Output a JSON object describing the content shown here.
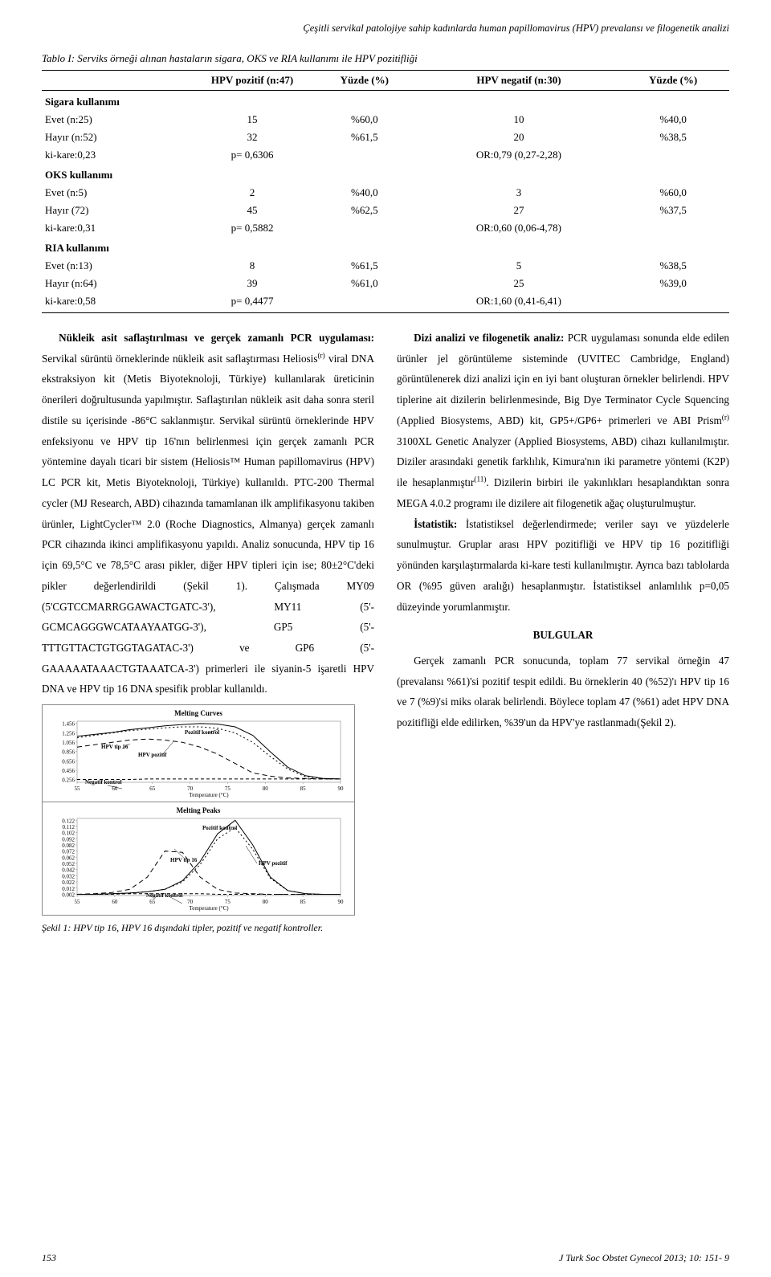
{
  "header_line": "Çeşitli servikal patolojiye sahip kadınlarda human papillomavirus (HPV) prevalansı ve filogenetik analizi",
  "table": {
    "caption": "Tablo I: Serviks örneği alınan hastaların sigara, OKS ve RIA kullanımı ile HPV pozitifliği",
    "columns": [
      "",
      "HPV pozitif (n:47)",
      "Yüzde (%)",
      "HPV negatif (n:30)",
      "Yüzde (%)"
    ],
    "sections": [
      {
        "head": "Sigara kullanımı",
        "rows": [
          [
            "Evet (n:25)",
            "15",
            "%60,0",
            "10",
            "%40,0"
          ],
          [
            "Hayır (n:52)",
            "32",
            "%61,5",
            "20",
            "%38,5"
          ],
          [
            "ki-kare:0,23",
            "p= 0,6306",
            "",
            "OR:0,79 (0,27-2,28)",
            ""
          ]
        ]
      },
      {
        "head": "OKS kullanımı",
        "rows": [
          [
            "Evet (n:5)",
            "2",
            "%40,0",
            "3",
            "%60,0"
          ],
          [
            "Hayır (72)",
            "45",
            "%62,5",
            "27",
            "%37,5"
          ],
          [
            "ki-kare:0,31",
            "p= 0,5882",
            "",
            "OR:0,60 (0,06-4,78)",
            ""
          ]
        ]
      },
      {
        "head": "RIA kullanımı",
        "rows": [
          [
            "Evet (n:13)",
            "8",
            "%61,5",
            "5",
            "%38,5"
          ],
          [
            "Hayır (n:64)",
            "39",
            "%61,0",
            "25",
            "%39,0"
          ],
          [
            "ki-kare:0,58",
            "p= 0,4477",
            "",
            "OR:1,60 (0,41-6,41)",
            ""
          ]
        ]
      }
    ]
  },
  "body": {
    "p1_prefix_bold": "Nükleik asit saflaştırılması ve gerçek zamanlı PCR uygulaması:",
    "p1_rest": " Servikal sürüntü örneklerinde nükleik asit saflaştırması Heliosis",
    "p1_sup": "(r)",
    "p1_rest2": " viral DNA ekstraksiyon kit (Metis Biyoteknoloji, Türkiye) kullanılarak üreticinin önerileri doğrultusunda yapılmıştır. Saflaştırılan nükleik asit daha sonra steril distile su içerisinde -86°C saklanmıştır. Servikal sürüntü örneklerinde HPV enfeksiyonu ve HPV tip 16'nın belirlenmesi için gerçek zamanlı PCR yöntemine dayalı ticari bir sistem (Heliosis™ Human papillomavirus (HPV) LC PCR kit, Metis Biyoteknoloji, Türkiye) kullanıldı. PTC-200 Thermal cycler (MJ Research, ABD) cihazında tamamlanan ilk amplifikasyonu takiben ürünler, LightCycler™ 2.0 (Roche Diagnostics, Almanya) gerçek zamanlı PCR cihazında ikinci amplifikasyonu yapıldı. Analiz sonucunda, HPV tip 16 için 69,5°C ve 78,5°C arası pikler, diğer HPV tipleri için ise; 80±2°C'deki pikler değerlendirildi (Şekil 1). Çalışmada MY09 (5'CGTCCMARRGGAWACTGATC-3'), MY11 (5'-GCMCAGGGWCATAAYAATGG-3'), GP5 (5'-TTTGTTACTGTGGTAGATAC-3') ve GP6 (5'-GAAAAATAAACTGTAAATCA-3') primerleri ile siyanin-5 işaretli HPV DNA ve HPV tip 16 DNA spesifik problar kullanıldı.",
    "p2_prefix_bold": "Dizi analizi ve filogenetik analiz:",
    "p2_rest": " PCR uygulaması sonunda elde edilen ürünler jel görüntüleme sisteminde (UVITEC Cambridge, England) görüntülenerek dizi analizi için en iyi bant oluşturan örnekler belirlendi. HPV tiplerine ait dizilerin belirlenmesinde, Big Dye Terminator Cycle Squencing (Applied Biosystems, ABD) kit, GP5+/GP6+ primerleri ve ABI Prism",
    "p2_sup": "(r)",
    "p2_rest2": " 3100XL Genetic Analyzer (Applied Biosystems, ABD) cihazı kullanılmıştır. Diziler arasındaki genetik farklılık, Kimura'nın iki parametre yöntemi (K2P) ile hesaplanmıştır",
    "p2_sup2": "(11)",
    "p2_rest3": ". Dizilerin birbiri ile yakınlıkları hesaplandıktan sonra MEGA 4.0.2 programı ile dizilere ait filogenetik ağaç oluşturulmuştur.",
    "p3_prefix_bold": "İstatistik:",
    "p3_rest": " İstatistiksel değerlendirmede; veriler sayı ve yüzdelerle sunulmuştur. Gruplar arası HPV pozitifliği ve HPV tip 16 pozitifliği yönünden karşılaştırmalarda ki-kare testi kullanılmıştır. Ayrıca bazı tablolarda OR (%95 güven aralığı) hesaplanmıştır. İstatistiksel anlamlılık p=0,05 düzeyinde yorumlanmıştır.",
    "sec_head": "BULGULAR",
    "p4": "Gerçek zamanlı PCR sonucunda, toplam 77 servikal örneğin 47 (prevalansı %61)'si pozitif tespit edildi. Bu örneklerin 40 (%52)'ı HPV tip 16 ve 7 (%9)'si miks olarak belirlendi. Böylece toplam 47 (%61) adet HPV DNA pozitifliği elde edilirken, %39'un da HPV'ye rastlanmadı(Şekil 2)."
  },
  "figure": {
    "panel1": {
      "title": "Melting Curves",
      "y_ticks": [
        "1.456",
        "1.256",
        "1.056",
        "0.856",
        "0.656",
        "0.456",
        "0.256"
      ],
      "x_ticks": [
        "55",
        "60",
        "65",
        "70",
        "75",
        "80",
        "85",
        "90"
      ],
      "x_label": "Temperature (°C)",
      "labels": {
        "neg": "Negatif kontrol",
        "hpv16": "HPV tip 16",
        "hpvpos": "HPV pozitif",
        "posk": "Pozitif kontrol"
      },
      "curves": {
        "neg": [
          0.26,
          0.26,
          0.26,
          0.26,
          0.27,
          0.27,
          0.27,
          0.27,
          0.27,
          0.27,
          0.27,
          0.27,
          0.27,
          0.27,
          0.27,
          0.27
        ],
        "hpv16": [
          0.95,
          1.0,
          1.05,
          1.1,
          1.12,
          1.1,
          1.05,
          0.95,
          0.8,
          0.6,
          0.4,
          0.33,
          0.29,
          0.28,
          0.27,
          0.27
        ],
        "hpvpos": [
          1.15,
          1.2,
          1.25,
          1.3,
          1.33,
          1.36,
          1.38,
          1.38,
          1.35,
          1.25,
          1.05,
          0.75,
          0.48,
          0.32,
          0.28,
          0.27
        ],
        "posk": [
          1.18,
          1.22,
          1.26,
          1.32,
          1.36,
          1.4,
          1.43,
          1.45,
          1.44,
          1.38,
          1.2,
          0.85,
          0.52,
          0.34,
          0.28,
          0.27
        ]
      },
      "ylim": [
        0.2,
        1.5
      ],
      "line_color": "#000000",
      "dash": {
        "neg": "4,3",
        "hpv16": "6,4",
        "hpvpos": "2,3",
        "posk": ""
      }
    },
    "panel2": {
      "title": "Melting Peaks",
      "y_ticks": [
        "0.122",
        "0.112",
        "0.102",
        "0.092",
        "0.082",
        "0.072",
        "0.062",
        "0.052",
        "0.042",
        "0.032",
        "0.022",
        "0.012",
        "0.002"
      ],
      "x_ticks": [
        "55",
        "60",
        "65",
        "70",
        "75",
        "80",
        "85",
        "90"
      ],
      "x_label": "Temperature (°C)",
      "labels": {
        "neg": "Negatif kontrol",
        "hpv16": "HPV tip 16",
        "hpvpos": "HPV pozitif",
        "posk": "Pozitif kontrol"
      },
      "curves": {
        "neg": [
          0.002,
          0.002,
          0.002,
          0.003,
          0.003,
          0.003,
          0.003,
          0.003,
          0.002,
          0.002,
          0.002,
          0.002,
          0.002,
          0.002,
          0.002,
          0.002
        ],
        "hpv16": [
          0.002,
          0.003,
          0.005,
          0.01,
          0.03,
          0.072,
          0.07,
          0.03,
          0.01,
          0.004,
          0.003,
          0.002,
          0.002,
          0.002,
          0.002,
          0.002
        ],
        "hpvpos": [
          0.002,
          0.002,
          0.003,
          0.004,
          0.006,
          0.01,
          0.022,
          0.05,
          0.092,
          0.11,
          0.075,
          0.028,
          0.008,
          0.003,
          0.002,
          0.002
        ],
        "posk": [
          0.002,
          0.002,
          0.003,
          0.004,
          0.006,
          0.01,
          0.024,
          0.055,
          0.1,
          0.122,
          0.082,
          0.03,
          0.008,
          0.003,
          0.002,
          0.002
        ]
      },
      "ylim": [
        0.0,
        0.125
      ],
      "line_color": "#000000",
      "dash": {
        "neg": "4,3",
        "hpv16": "6,4",
        "hpvpos": "2,3",
        "posk": ""
      }
    },
    "caption": "Şekil 1: HPV tip 16, HPV 16 dışındaki tipler, pozitif ve negatif kontroller."
  },
  "footer": {
    "page": "153",
    "journal": "J Turk Soc Obstet Gynecol 2013; 10: 151- 9"
  }
}
